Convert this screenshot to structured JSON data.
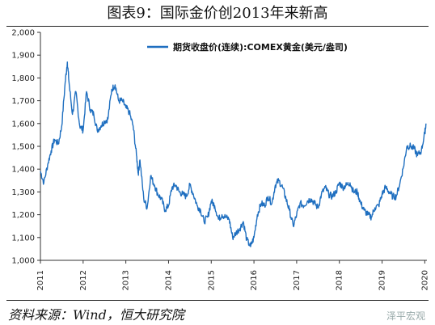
{
  "header": {
    "title": "图表9：国际金价创2013年来新高"
  },
  "footer": {
    "source": "资料来源：Wind，恒大研究院",
    "watermark": "泽平宏观"
  },
  "colors": {
    "series": "#1f6fc0",
    "axis": "#333333",
    "text": "#222222"
  },
  "chart_data": {
    "type": "line",
    "title": "图表9：国际金价创2013年来新高",
    "legend": {
      "position": "top-right",
      "entries": [
        "期货收盘价(连续):COMEX黄金(美元/盎司)"
      ]
    },
    "xlabel": "",
    "ylabel": "",
    "xlim": [
      2011.0,
      2020.05
    ],
    "ylim": [
      1000,
      2000
    ],
    "yticks": [
      1000,
      1100,
      1200,
      1300,
      1400,
      1500,
      1600,
      1700,
      1800,
      1900,
      2000
    ],
    "ytick_labels": [
      "1,000",
      "1,100",
      "1,200",
      "1,300",
      "1,400",
      "1,500",
      "1,600",
      "1,700",
      "1,800",
      "1,900",
      "2,000"
    ],
    "xticks": [
      2011,
      2012,
      2013,
      2014,
      2015,
      2016,
      2017,
      2018,
      2019,
      2020
    ],
    "xtick_labels": [
      "2011",
      "2012",
      "2013",
      "2014",
      "2015",
      "2016",
      "2017",
      "2018",
      "2019",
      "2020"
    ],
    "grid": false,
    "series": [
      {
        "name": "期货收盘价(连续):COMEX黄金(美元/盎司)",
        "x": [
          2011.0,
          2011.08,
          2011.17,
          2011.25,
          2011.33,
          2011.42,
          2011.5,
          2011.58,
          2011.63,
          2011.67,
          2011.75,
          2011.83,
          2011.92,
          2012.0,
          2012.08,
          2012.17,
          2012.25,
          2012.33,
          2012.42,
          2012.5,
          2012.58,
          2012.67,
          2012.75,
          2012.83,
          2012.92,
          2013.0,
          2013.08,
          2013.17,
          2013.25,
          2013.29,
          2013.33,
          2013.42,
          2013.5,
          2013.58,
          2013.67,
          2013.75,
          2013.83,
          2013.92,
          2014.0,
          2014.08,
          2014.17,
          2014.25,
          2014.33,
          2014.42,
          2014.5,
          2014.58,
          2014.67,
          2014.75,
          2014.83,
          2014.92,
          2015.0,
          2015.08,
          2015.17,
          2015.25,
          2015.33,
          2015.42,
          2015.5,
          2015.58,
          2015.67,
          2015.75,
          2015.83,
          2015.92,
          2016.0,
          2016.08,
          2016.17,
          2016.25,
          2016.33,
          2016.42,
          2016.5,
          2016.58,
          2016.67,
          2016.75,
          2016.83,
          2016.92,
          2017.0,
          2017.08,
          2017.17,
          2017.25,
          2017.33,
          2017.42,
          2017.5,
          2017.58,
          2017.67,
          2017.75,
          2017.83,
          2017.92,
          2018.0,
          2018.08,
          2018.17,
          2018.25,
          2018.33,
          2018.42,
          2018.5,
          2018.58,
          2018.67,
          2018.75,
          2018.83,
          2018.92,
          2019.0,
          2019.08,
          2019.17,
          2019.25,
          2019.33,
          2019.42,
          2019.5,
          2019.58,
          2019.67,
          2019.75,
          2019.83,
          2019.92,
          2020.0,
          2020.03
        ],
        "y": [
          1390,
          1340,
          1420,
          1480,
          1530,
          1510,
          1590,
          1780,
          1870,
          1780,
          1640,
          1740,
          1590,
          1570,
          1740,
          1660,
          1640,
          1570,
          1590,
          1610,
          1620,
          1750,
          1770,
          1700,
          1700,
          1670,
          1650,
          1590,
          1460,
          1380,
          1440,
          1270,
          1230,
          1370,
          1330,
          1290,
          1270,
          1220,
          1240,
          1320,
          1330,
          1300,
          1290,
          1280,
          1330,
          1290,
          1240,
          1220,
          1170,
          1190,
          1260,
          1240,
          1180,
          1200,
          1190,
          1180,
          1100,
          1120,
          1140,
          1170,
          1090,
          1060,
          1100,
          1200,
          1250,
          1240,
          1280,
          1250,
          1330,
          1350,
          1320,
          1270,
          1220,
          1150,
          1200,
          1250,
          1240,
          1260,
          1270,
          1250,
          1230,
          1290,
          1320,
          1290,
          1280,
          1300,
          1340,
          1320,
          1330,
          1340,
          1300,
          1300,
          1250,
          1220,
          1200,
          1190,
          1230,
          1240,
          1290,
          1320,
          1300,
          1280,
          1280,
          1340,
          1410,
          1500,
          1500,
          1490,
          1460,
          1480,
          1560,
          1600
        ]
      }
    ]
  }
}
